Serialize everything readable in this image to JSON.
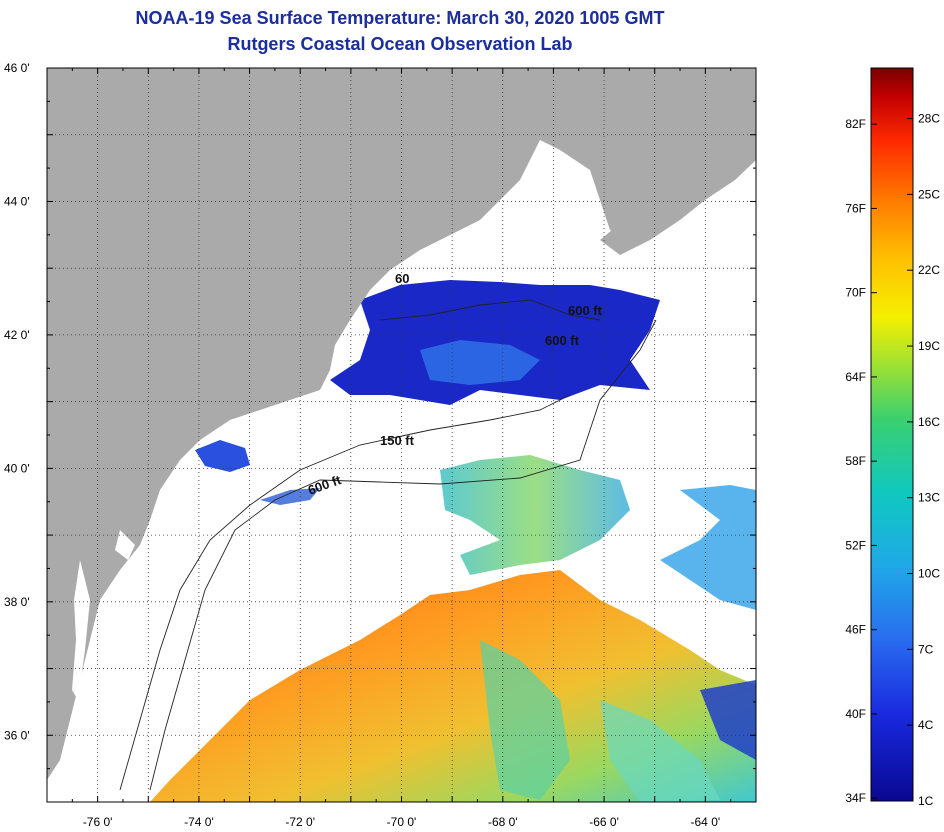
{
  "header": {
    "title": "NOAA-19 Sea Surface Temperature:  March 30, 2020 1005 GMT",
    "subtitle": "Rutgers Coastal Ocean Observation Lab"
  },
  "axes": {
    "lat_labels": [
      "46 0'",
      "44 0'",
      "42 0'",
      "40 0'",
      "38 0'",
      "36 0'"
    ],
    "lon_labels": [
      "-76 0'",
      "-74 0'",
      "-72 0'",
      "-70 0'",
      "-68 0'",
      "-66 0'",
      "-64 0'"
    ],
    "lat_range": [
      35,
      46
    ],
    "lon_range": [
      -77,
      -63
    ],
    "grid": "dotted"
  },
  "depth_contours": {
    "labels": [
      "150 ft",
      "600 ft",
      "600 ft",
      "600 ft",
      "60"
    ]
  },
  "colorbar": {
    "fahrenheit_labels": [
      "82F",
      "76F",
      "70F",
      "64F",
      "58F",
      "52F",
      "46F",
      "40F",
      "34F"
    ],
    "celsius_labels": [
      "28C",
      "25C",
      "22C",
      "19C",
      "16C",
      "13C",
      "10C",
      "7C",
      "4C",
      "1C"
    ],
    "range_c": [
      1,
      30
    ],
    "colors": [
      "#7a0000",
      "#c40000",
      "#ff2a00",
      "#ff7a00",
      "#ffc000",
      "#f4f000",
      "#a6e22e",
      "#39d070",
      "#10c8c0",
      "#20a8e8",
      "#2a6cf0",
      "#1a2ae0",
      "#0a0890"
    ]
  },
  "map_colors": {
    "land": "#aaaaaa",
    "ocean_nodata": "#ffffff",
    "cold": "#1f2fd0",
    "warm": "#ff8a20"
  }
}
